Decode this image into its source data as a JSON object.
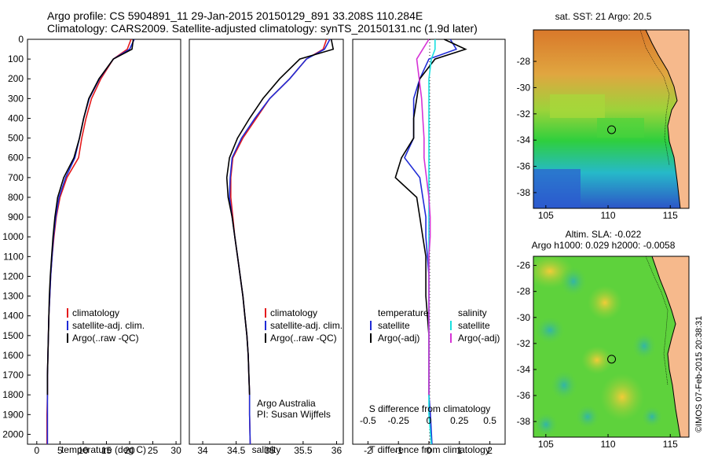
{
  "header": {
    "line1": "Argo profile: CS 5904891_11 29-Jan-2015 20150129_891 33.208S 110.284E",
    "line2": "Climatology: CARS2009. Satellite-adjusted climatology: synTS_20150131.nc (1.9d later)"
  },
  "colors": {
    "red": "#e41a1c",
    "blue": "#1f2bd6",
    "black": "#000000",
    "cyan": "#19e0e0",
    "magenta": "#d633d6",
    "land": "#f6b98c"
  },
  "chart_data": [
    {
      "type": "line",
      "name": "temperature-panel",
      "xlabel": "temperature (deg C)",
      "ylabel": "",
      "xlim": [
        -2,
        31
      ],
      "ylim": [
        2050,
        0
      ],
      "xticks": [
        "0",
        "5",
        "10",
        "15",
        "20",
        "25",
        "30"
      ],
      "yticks": [
        "0",
        "100",
        "200",
        "300",
        "400",
        "500",
        "600",
        "700",
        "800",
        "900",
        "1000",
        "1100",
        "1200",
        "1300",
        "1400",
        "1500",
        "1600",
        "1700",
        "1800",
        "1900",
        "2000"
      ],
      "legend": [
        "climatology",
        "satellite-adj. clim.",
        "Argo(..raw -QC)"
      ],
      "series": [
        {
          "name": "climatology",
          "color": "red",
          "x": [
            20.3,
            19.5,
            16.5,
            13.8,
            11.8,
            10.6,
            9.7,
            9.0,
            6.5,
            5.0,
            4.2,
            3.7,
            3.3,
            3.0,
            2.8,
            2.6,
            2.5,
            2.4,
            2.3,
            2.3,
            2.2,
            2.2
          ],
          "y": [
            0,
            50,
            100,
            200,
            300,
            400,
            500,
            600,
            700,
            800,
            900,
            1000,
            1100,
            1200,
            1300,
            1400,
            1500,
            1600,
            1700,
            1800,
            1900,
            2050
          ]
        },
        {
          "name": "satellite-adj. clim.",
          "color": "blue",
          "x": [
            21.0,
            20.0,
            16.5,
            13.5,
            11.3,
            10.1,
            9.2,
            8.2,
            6.2,
            4.8,
            4.1,
            3.6,
            3.3,
            3.0,
            2.8,
            2.6,
            2.5,
            2.4,
            2.3,
            2.3,
            2.3,
            2.3
          ],
          "y": [
            0,
            50,
            100,
            200,
            300,
            400,
            500,
            600,
            700,
            800,
            900,
            1000,
            1100,
            1200,
            1300,
            1400,
            1500,
            1600,
            1700,
            1800,
            1900,
            2050
          ]
        },
        {
          "name": "Argo(..raw -QC)",
          "color": "black",
          "x": [
            20.8,
            20.5,
            16.5,
            13.4,
            11.2,
            10.1,
            9.2,
            8.0,
            5.8,
            4.5,
            3.9,
            3.5,
            3.2,
            2.9,
            2.7,
            2.6,
            2.5,
            2.4,
            2.3,
            2.3
          ],
          "y": [
            0,
            50,
            100,
            200,
            300,
            400,
            500,
            600,
            700,
            800,
            900,
            1000,
            1100,
            1200,
            1300,
            1400,
            1500,
            1600,
            1700,
            1800
          ]
        }
      ]
    },
    {
      "type": "line",
      "name": "salinity-panel",
      "xlabel": "salinity",
      "xlim": [
        33.8,
        36.1
      ],
      "ylim": [
        2050,
        0
      ],
      "xticks": [
        "34",
        "34.5",
        "35",
        "35.5",
        "36"
      ],
      "legend": [
        "climatology",
        "satellite-adj. clim.",
        "Argo(..raw -QC)"
      ],
      "annotation": [
        "Argo Australia",
        "PI: Susan Wijffels"
      ],
      "series": [
        {
          "name": "climatology",
          "color": "red",
          "x": [
            35.85,
            35.8,
            35.55,
            35.3,
            35.0,
            34.8,
            34.6,
            34.45,
            34.42,
            34.42,
            34.45,
            34.48,
            34.52,
            34.56,
            34.6,
            34.63,
            34.66,
            34.68,
            34.69,
            34.7,
            34.7,
            34.71
          ],
          "y": [
            0,
            50,
            100,
            200,
            300,
            400,
            500,
            600,
            700,
            800,
            900,
            1000,
            1100,
            1200,
            1300,
            1400,
            1500,
            1600,
            1700,
            1800,
            1900,
            2050
          ]
        },
        {
          "name": "satellite-adj. clim.",
          "color": "blue",
          "x": [
            35.9,
            35.82,
            35.55,
            35.3,
            35.0,
            34.78,
            34.58,
            34.44,
            34.41,
            34.4,
            34.44,
            34.48,
            34.52,
            34.56,
            34.6,
            34.63,
            34.66,
            34.68,
            34.69,
            34.7,
            34.7,
            34.71
          ],
          "y": [
            0,
            50,
            100,
            200,
            300,
            400,
            500,
            600,
            700,
            800,
            900,
            1000,
            1100,
            1200,
            1300,
            1400,
            1500,
            1600,
            1700,
            1800,
            1900,
            2050
          ]
        },
        {
          "name": "Argo(..raw -QC)",
          "color": "black",
          "x": [
            35.92,
            35.95,
            35.45,
            35.15,
            34.9,
            34.7,
            34.52,
            34.4,
            34.36,
            34.38,
            34.44,
            34.48,
            34.52,
            34.56,
            34.6,
            34.63,
            34.66,
            34.68,
            34.69,
            34.7
          ],
          "y": [
            0,
            50,
            100,
            200,
            300,
            400,
            500,
            600,
            700,
            800,
            900,
            1000,
            1100,
            1200,
            1300,
            1400,
            1500,
            1600,
            1700,
            1800
          ]
        }
      ]
    },
    {
      "type": "line",
      "name": "difference-panel",
      "xlabel": "T difference from climatology",
      "xlabel_top": "S difference from climatology",
      "xlim": [
        -2.5,
        2.5
      ],
      "ylim": [
        2050,
        0
      ],
      "xticks": [
        "-2",
        "-1",
        "0",
        "1",
        "2"
      ],
      "xticks_s": [
        "-0.5",
        "-0.25",
        "0",
        "0.25",
        "0.5"
      ],
      "legend_t": {
        "title": "temperature",
        "items": [
          "satellite",
          "Argo(-adj)"
        ]
      },
      "legend_s": {
        "title": "salinity",
        "items": [
          "satellite",
          "Argo(-adj)"
        ]
      },
      "series": [
        {
          "name": "T satellite",
          "color": "blue",
          "x": [
            0.7,
            0.9,
            0.0,
            -0.3,
            -0.5,
            -0.5,
            -0.5,
            -0.8,
            -0.3,
            -0.2,
            -0.1,
            -0.1,
            -0.05,
            0,
            0,
            0,
            0,
            0,
            0,
            0,
            0.05,
            0.1
          ],
          "y": [
            0,
            50,
            100,
            200,
            300,
            400,
            500,
            600,
            700,
            800,
            900,
            1000,
            1100,
            1200,
            1300,
            1400,
            1500,
            1600,
            1700,
            1800,
            1900,
            2050
          ]
        },
        {
          "name": "T Argo(-adj)",
          "color": "black",
          "x": [
            0.5,
            1.2,
            0.2,
            -0.3,
            -0.4,
            -0.5,
            -0.5,
            -0.9,
            -1.1,
            -0.4,
            -0.3,
            -0.2,
            -0.1,
            -0.1,
            -0.1,
            -0.05,
            0,
            0,
            0,
            0
          ],
          "y": [
            0,
            50,
            100,
            200,
            300,
            400,
            500,
            600,
            700,
            800,
            900,
            1000,
            1100,
            1200,
            1300,
            1400,
            1500,
            1600,
            1700,
            1800
          ]
        },
        {
          "name": "S satellite",
          "color": "cyan",
          "x": [
            0.05,
            0.05,
            0.02,
            0,
            0,
            0,
            0,
            0,
            0,
            0,
            0,
            0,
            0,
            0,
            0,
            0,
            0,
            0,
            0,
            0,
            0,
            0.02
          ],
          "y": [
            0,
            50,
            100,
            200,
            300,
            400,
            500,
            600,
            700,
            800,
            900,
            1000,
            1100,
            1200,
            1300,
            1400,
            1500,
            1600,
            1700,
            1800,
            1900,
            2050
          ]
        },
        {
          "name": "S Argo(-adj)",
          "color": "magenta",
          "x": [
            0,
            -0.05,
            -0.1,
            -0.08,
            -0.06,
            -0.05,
            -0.04,
            -0.04,
            -0.02,
            0,
            0.01,
            0.01,
            0,
            0,
            0,
            0,
            0,
            0,
            0,
            0
          ],
          "y": [
            0,
            50,
            100,
            200,
            300,
            400,
            500,
            600,
            700,
            800,
            900,
            1000,
            1100,
            1200,
            1300,
            1400,
            1500,
            1600,
            1700,
            1800
          ]
        }
      ]
    },
    {
      "type": "heatmap",
      "name": "sst-map",
      "title": "sat. SST: 21  Argo: 20.5",
      "xticks": [
        "105",
        "110",
        "115"
      ],
      "yticks": [
        "-28",
        "-30",
        "-32",
        "-34",
        "-36",
        "-38"
      ],
      "xlim": [
        104,
        116.5
      ],
      "ylim": [
        -39.2,
        -25.6
      ],
      "marker": {
        "lon": 110.284,
        "lat": -33.208
      }
    },
    {
      "type": "heatmap",
      "name": "sla-map",
      "title": "Altim. SLA: -0.022",
      "subtitle": "Argo h1000: 0.029 h2000: -0.0058",
      "xticks": [
        "105",
        "110",
        "115"
      ],
      "yticks": [
        "-26",
        "-28",
        "-30",
        "-32",
        "-34",
        "-36",
        "-38"
      ],
      "xlim": [
        104,
        116.5
      ],
      "ylim": [
        -39.2,
        -25.3
      ],
      "marker": {
        "lon": 110.284,
        "lat": -33.208
      },
      "side_label": "©IMOS 07-Feb-2015 20:38:31"
    }
  ]
}
